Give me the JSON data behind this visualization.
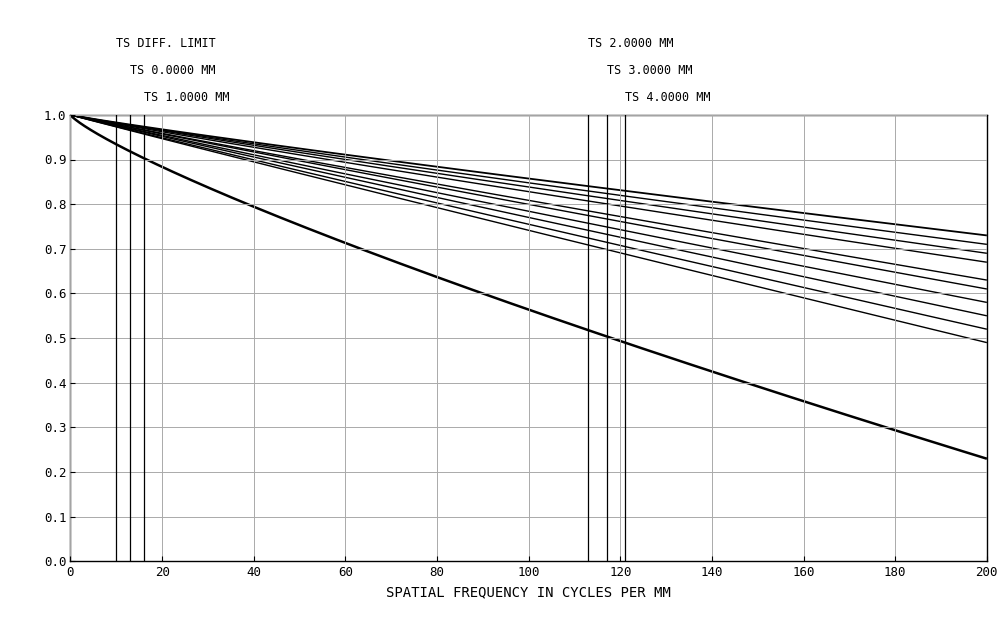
{
  "xlabel": "SPATIAL FREQUENCY IN CYCLES PER MM",
  "xlim": [
    0,
    200
  ],
  "ylim": [
    0.0,
    1.0
  ],
  "xticks": [
    0,
    20,
    40,
    60,
    80,
    100,
    120,
    140,
    160,
    180,
    200
  ],
  "yticks": [
    0.0,
    0.1,
    0.2,
    0.3,
    0.4,
    0.5,
    0.6,
    0.7,
    0.8,
    0.9,
    1.0
  ],
  "bg_color": "#ffffff",
  "plot_bg_color": "#ffffff",
  "grid_color": "#aaaaaa",
  "line_color": "#000000",
  "font_family": "monospace",
  "font_size_ticks": 9,
  "font_size_labels": 10,
  "font_size_annotations": 8.5,
  "left_vlines": [
    10,
    13,
    16,
    19,
    22
  ],
  "right_vlines": [
    113,
    117,
    121,
    125,
    129
  ],
  "left_ann": [
    {
      "label": "TS DIFF. LIMIT",
      "vline_idx": 0,
      "row": 0
    },
    {
      "label": "TS 0.0000 MM",
      "vline_idx": 1,
      "row": 1
    },
    {
      "label": "TS 1.0000 MM",
      "vline_idx": 2,
      "row": 2
    }
  ],
  "right_ann": [
    {
      "label": "TS 2.0000 MM",
      "vline_idx": 0,
      "row": 0
    },
    {
      "label": "TS 3.0000 MM",
      "vline_idx": 1,
      "row": 1
    },
    {
      "label": "TS 4.0000 MM",
      "vline_idx": 2,
      "row": 2
    }
  ],
  "curves": [
    {
      "y200": 0.23,
      "lw": 1.8,
      "concavity": 0.18
    },
    {
      "y200": 0.73,
      "lw": 1.3,
      "concavity": 0.08
    },
    {
      "y200": 0.71,
      "lw": 1.0,
      "concavity": 0.07
    },
    {
      "y200": 0.69,
      "lw": 1.0,
      "concavity": 0.06
    },
    {
      "y200": 0.67,
      "lw": 1.0,
      "concavity": 0.06
    },
    {
      "y200": 0.63,
      "lw": 1.0,
      "concavity": 0.05
    },
    {
      "y200": 0.61,
      "lw": 1.0,
      "concavity": 0.04
    },
    {
      "y200": 0.58,
      "lw": 1.0,
      "concavity": 0.04
    },
    {
      "y200": 0.55,
      "lw": 1.0,
      "concavity": 0.03
    },
    {
      "y200": 0.52,
      "lw": 1.0,
      "concavity": 0.03
    },
    {
      "y200": 0.49,
      "lw": 1.0,
      "concavity": 0.02
    }
  ]
}
